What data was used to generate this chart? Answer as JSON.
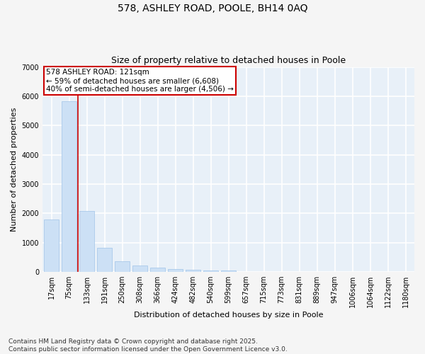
{
  "title1": "578, ASHLEY ROAD, POOLE, BH14 0AQ",
  "title2": "Size of property relative to detached houses in Poole",
  "xlabel": "Distribution of detached houses by size in Poole",
  "ylabel": "Number of detached properties",
  "categories": [
    "17sqm",
    "75sqm",
    "133sqm",
    "191sqm",
    "250sqm",
    "308sqm",
    "366sqm",
    "424sqm",
    "482sqm",
    "540sqm",
    "599sqm",
    "657sqm",
    "715sqm",
    "773sqm",
    "831sqm",
    "889sqm",
    "947sqm",
    "1006sqm",
    "1064sqm",
    "1122sqm",
    "1180sqm"
  ],
  "values": [
    1780,
    5830,
    2090,
    820,
    370,
    210,
    135,
    100,
    75,
    55,
    40,
    0,
    0,
    0,
    0,
    0,
    0,
    0,
    0,
    0,
    0
  ],
  "bar_color": "#cce0f5",
  "bar_edge_color": "#a0c4e8",
  "vline_color": "#cc0000",
  "annotation_box_text": "578 ASHLEY ROAD: 121sqm\n← 59% of detached houses are smaller (6,608)\n40% of semi-detached houses are larger (4,506) →",
  "annotation_box_color": "#cc0000",
  "ylim": [
    0,
    7000
  ],
  "yticks": [
    0,
    1000,
    2000,
    3000,
    4000,
    5000,
    6000,
    7000
  ],
  "background_color": "#e8f0f8",
  "grid_color": "#ffffff",
  "fig_background": "#f5f5f5",
  "footer1": "Contains HM Land Registry data © Crown copyright and database right 2025.",
  "footer2": "Contains public sector information licensed under the Open Government Licence v3.0.",
  "title1_fontsize": 10,
  "title2_fontsize": 9,
  "axis_label_fontsize": 8,
  "tick_fontsize": 7,
  "annotation_fontsize": 7.5,
  "footer_fontsize": 6.5
}
